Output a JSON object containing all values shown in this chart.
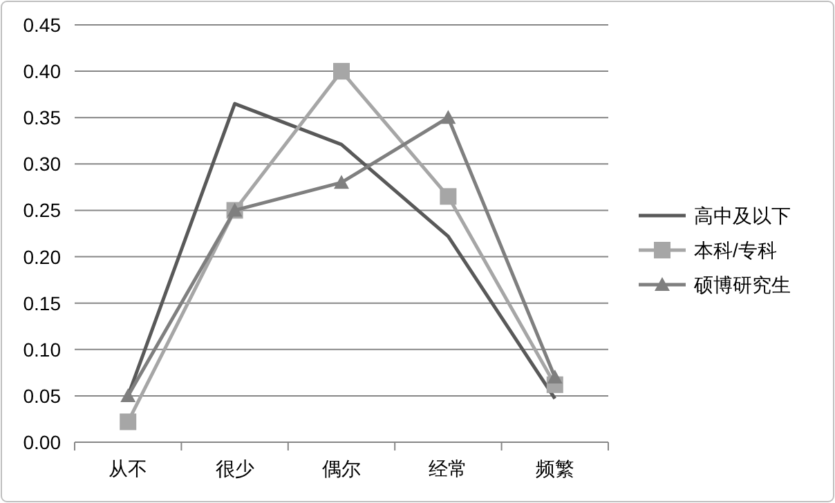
{
  "chart_data": {
    "type": "line",
    "categories": [
      "从不",
      "很少",
      "偶尔",
      "经常",
      "频繁"
    ],
    "series": [
      {
        "name": "高中及以下",
        "color": "#595959",
        "marker": "none",
        "values": [
          0.05,
          0.365,
          0.321,
          0.222,
          0.047
        ]
      },
      {
        "name": "本科/专科",
        "color": "#a6a6a6",
        "marker": "square",
        "values": [
          0.022,
          0.25,
          0.4,
          0.265,
          0.062
        ]
      },
      {
        "name": "硕博研究生",
        "color": "#7f7f7f",
        "marker": "triangle",
        "values": [
          0.05,
          0.25,
          0.28,
          0.35,
          0.07
        ]
      }
    ],
    "ylim": [
      0,
      0.45
    ],
    "yticks": [
      {
        "value": 0,
        "label": "0.00"
      },
      {
        "value": 0.05,
        "label": "0.05"
      },
      {
        "value": 0.1,
        "label": "0.10"
      },
      {
        "value": 0.15,
        "label": "0.15"
      },
      {
        "value": 0.2,
        "label": "0.20"
      },
      {
        "value": 0.25,
        "label": "0.25"
      },
      {
        "value": 0.3,
        "label": "0.30"
      },
      {
        "value": 0.35,
        "label": "0.35"
      },
      {
        "value": 0.4,
        "label": "0.40"
      },
      {
        "value": 0.45,
        "label": "0.45"
      }
    ],
    "grid": "y",
    "legend": "right"
  }
}
